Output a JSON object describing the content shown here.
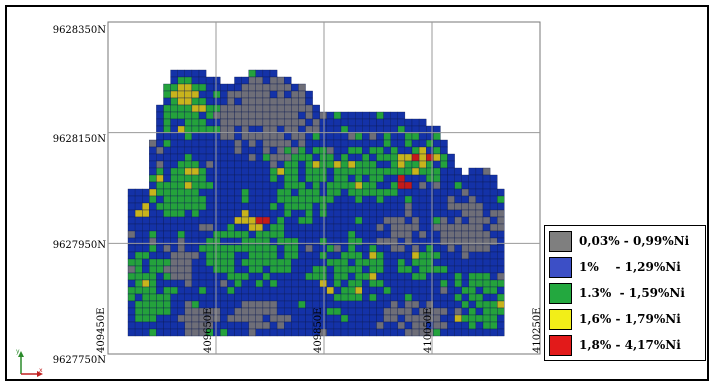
{
  "map": {
    "y_labels": [
      "9628350N",
      "9628150N",
      "9627950N",
      "9627750N"
    ],
    "x_labels": [
      "409450E",
      "409650E",
      "409850E",
      "410050E",
      "410250E"
    ],
    "north_arrow_label": "y",
    "east_arrow_label": "x",
    "extent": {
      "x_min": 409450,
      "x_max": 410250,
      "y_min": 9627750,
      "y_max": 9628350
    },
    "colors": {
      "grey": "#6e6e78",
      "blue": "#1432a8",
      "green": "#24a23c",
      "yellow": "#c8b41c",
      "red": "#c41a1a"
    }
  },
  "legend": {
    "items": [
      {
        "label": "0,03% - 0,99%Ni",
        "color": "#7f7f7f"
      },
      {
        "label": "1%    - 1,29%Ni",
        "color": "#3c4fc6"
      },
      {
        "label": "1.3%  - 1,59%Ni",
        "color": "#23a83f"
      },
      {
        "label": "1,6% - 1,79%Ni",
        "color": "#f2ee18"
      },
      {
        "label": "1,8% - 4,17%Ni",
        "color": "#e21a1a"
      }
    ]
  }
}
